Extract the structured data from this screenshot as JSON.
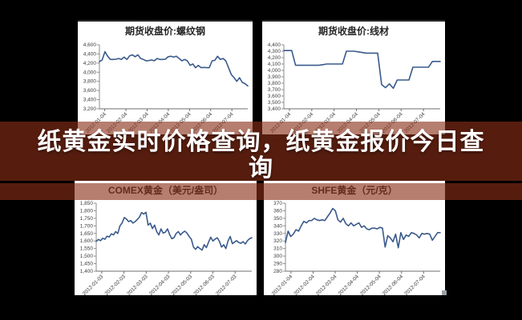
{
  "banner": {
    "title_full": "纸黄金实时价格查询，纸黄金报价今日查询",
    "title_lines": [
      "纸黄金实时价格查询，纸黄金报价今日查",
      "询"
    ],
    "overlay_color": "rgba(138,47,23,0.62)",
    "text_color": "#ffffff"
  },
  "chart_data": [
    {
      "type": "line",
      "title": "期货收盘价:螺纹钢",
      "ylabel": "",
      "xlabel": "",
      "ylim": [
        3200,
        4600
      ],
      "ystep": 200,
      "comma": true,
      "line_color": "#3a5a8c",
      "x_labels": [
        "2012-01-04",
        "2012-02-04",
        "2012-03-04",
        "2012-04-04",
        "2012-05-04",
        "2012-06-04",
        "2012-07-04"
      ],
      "values": [
        4230,
        4270,
        4450,
        4350,
        4280,
        4280,
        4285,
        4300,
        4280,
        4330,
        4280,
        4360,
        4380,
        4340,
        4380,
        4300,
        4280,
        4250,
        4255,
        4270,
        4250,
        4300,
        4280,
        4280,
        4285,
        4340,
        4350,
        4330,
        4350,
        4300,
        4250,
        4280,
        4250,
        4150,
        4180,
        4100,
        4150,
        4100,
        4105,
        4100,
        4100,
        4250,
        4260,
        4350,
        4280,
        4300,
        4250,
        4100,
        3950,
        3880,
        3800,
        3880,
        3780,
        3750,
        3700
      ]
    },
    {
      "type": "line",
      "title": "期货收盘价:线材",
      "ylabel": "",
      "xlabel": "",
      "ylim": [
        3400,
        4400
      ],
      "ystep": 100,
      "comma": true,
      "line_color": "#3a5a8c",
      "x_labels": [
        "2012-01-04",
        "2012-02-04",
        "2012-03-04",
        "2012-04-04",
        "2012-05-04",
        "2012-06-04",
        "2012-07-04"
      ],
      "values": [
        4310,
        4310,
        4310,
        4080,
        4080,
        4080,
        4080,
        4080,
        4080,
        4080,
        4090,
        4100,
        4100,
        4100,
        4100,
        4100,
        4300,
        4300,
        4300,
        4290,
        4280,
        4270,
        4270,
        4270,
        4270,
        3780,
        3730,
        3790,
        3720,
        3850,
        3850,
        3850,
        3850,
        4050,
        4050,
        4050,
        4050,
        4050,
        4140,
        4140,
        4140
      ]
    },
    {
      "type": "line",
      "title": "COMEX黄金（美元/盎司）",
      "ylabel": "",
      "xlabel": "",
      "ylim": [
        1400,
        1850
      ],
      "ystep": 50,
      "comma": true,
      "line_color": "#3a5a8c",
      "x_labels": [
        "2012-01-03",
        "2012-02-03",
        "2012-03-03",
        "2012-04-03",
        "2012-05-03",
        "2012-06-03",
        "2012-07-03"
      ],
      "values": [
        1598,
        1610,
        1602,
        1618,
        1612,
        1632,
        1626,
        1648,
        1640,
        1662,
        1650,
        1700,
        1720,
        1755,
        1745,
        1728,
        1735,
        1718,
        1728,
        1742,
        1758,
        1788,
        1778,
        1790,
        1705,
        1718,
        1682,
        1705,
        1662,
        1640,
        1680,
        1652,
        1658,
        1680,
        1642,
        1615,
        1622,
        1650,
        1662,
        1640,
        1655,
        1665,
        1652,
        1630,
        1612,
        1560,
        1545,
        1562,
        1550,
        1540,
        1576,
        1556,
        1592,
        1625,
        1600,
        1612,
        1622,
        1598,
        1560,
        1575,
        1550,
        1600,
        1630,
        1582,
        1592,
        1602,
        1590,
        1585,
        1596,
        1580,
        1602,
        1615,
        1622
      ]
    },
    {
      "type": "line",
      "title": "SHFE黄金（元/克）",
      "ylabel": "",
      "xlabel": "",
      "ylim": [
        280,
        370
      ],
      "ystep": 10,
      "comma": false,
      "line_color": "#3a5a8c",
      "x_labels": [
        "2012-01-04",
        "2012-02-04",
        "2012-03-04",
        "2012-04-04",
        "2012-05-04",
        "2012-06-04",
        "2012-07-04"
      ],
      "values": [
        318,
        333,
        326,
        329,
        335,
        333,
        340,
        346,
        344,
        347,
        347,
        350,
        348,
        347,
        348,
        347,
        352,
        357,
        363,
        360,
        348,
        345,
        350,
        343,
        340,
        344,
        340,
        342,
        344,
        338,
        340,
        336,
        335,
        337,
        337,
        336,
        338,
        337,
        312,
        327,
        324,
        319,
        329,
        311,
        331,
        322,
        328,
        326,
        331,
        330,
        328,
        324,
        330,
        329,
        330,
        329,
        321,
        326,
        331,
        331
      ]
    }
  ]
}
